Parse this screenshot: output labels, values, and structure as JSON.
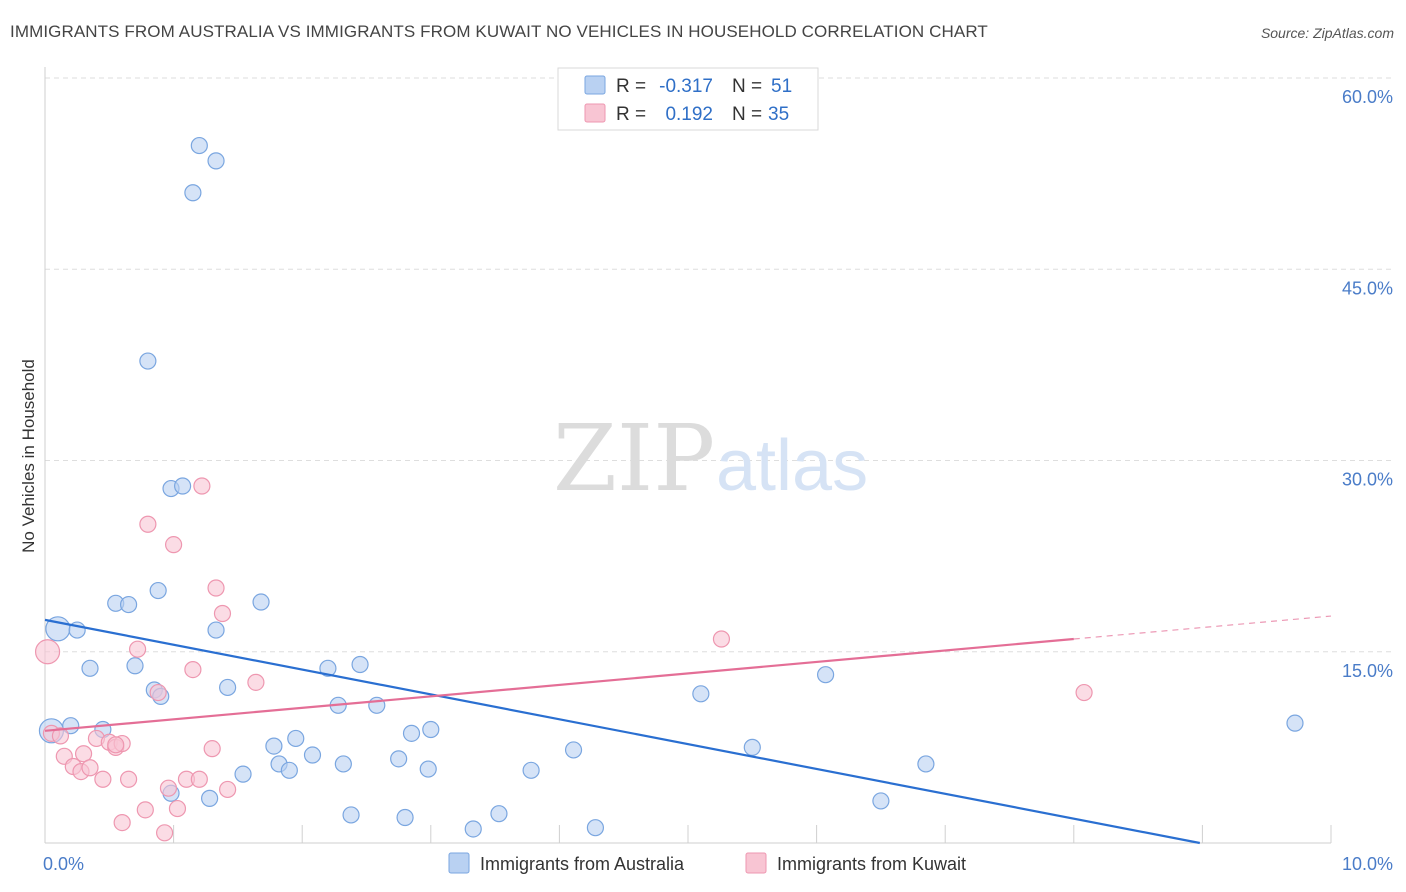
{
  "header": {
    "title": "IMMIGRANTS FROM AUSTRALIA VS IMMIGRANTS FROM KUWAIT NO VEHICLES IN HOUSEHOLD CORRELATION CHART",
    "source": "Source: ZipAtlas.com"
  },
  "watermark": {
    "zip": "ZIP",
    "atlas": "atlas"
  },
  "legend": {
    "r_label": "R =",
    "n_label": "N =",
    "rows": [
      {
        "r": "-0.317",
        "n": "51",
        "color": "#a9c6ee"
      },
      {
        "r": "0.192",
        "n": "35",
        "color": "#f5b7c8"
      }
    ]
  },
  "colors": {
    "australia_fill": "#b9d1f2",
    "australia_stroke": "#7aa6e0",
    "australia_line": "#2a6fd1",
    "kuwait_fill": "#f8c5d3",
    "kuwait_stroke": "#ee97b0",
    "kuwait_line": "#e46e96",
    "tick_text": "#4a7cc8"
  },
  "chart_data": {
    "type": "scatter",
    "title": "IMMIGRANTS FROM AUSTRALIA VS IMMIGRANTS FROM KUWAIT NO VEHICLES IN HOUSEHOLD CORRELATION CHART",
    "xlabel": "",
    "ylabel": "No Vehicles in Household",
    "xlim": [
      0,
      10
    ],
    "ylim": [
      0,
      60
    ],
    "x_tick_labels": [
      "0.0%",
      "10.0%"
    ],
    "y_tick_labels": [
      "15.0%",
      "30.0%",
      "45.0%",
      "60.0%"
    ],
    "y_ticks": [
      15,
      30,
      45,
      60
    ],
    "grid": true,
    "legend_position": "top-center",
    "series": [
      {
        "name": "Immigrants from Australia",
        "color": "#a9c6ee",
        "points": [
          [
            0.05,
            8.8
          ],
          [
            0.1,
            16.8
          ],
          [
            0.25,
            16.7
          ],
          [
            0.35,
            13.7
          ],
          [
            0.45,
            8.9
          ],
          [
            0.55,
            18.8
          ],
          [
            0.65,
            18.7
          ],
          [
            0.7,
            13.9
          ],
          [
            0.85,
            12.0
          ],
          [
            0.9,
            11.5
          ],
          [
            0.8,
            37.8
          ],
          [
            0.88,
            19.8
          ],
          [
            0.98,
            27.8
          ],
          [
            1.07,
            28.0
          ],
          [
            1.15,
            51.0
          ],
          [
            1.2,
            54.7
          ],
          [
            1.33,
            53.5
          ],
          [
            1.33,
            16.7
          ],
          [
            1.42,
            12.2
          ],
          [
            1.54,
            5.4
          ],
          [
            1.68,
            18.9
          ],
          [
            1.78,
            7.6
          ],
          [
            1.82,
            6.2
          ],
          [
            1.9,
            5.7
          ],
          [
            1.95,
            8.2
          ],
          [
            2.08,
            6.9
          ],
          [
            2.2,
            13.7
          ],
          [
            2.28,
            10.8
          ],
          [
            2.32,
            6.2
          ],
          [
            2.38,
            2.2
          ],
          [
            2.45,
            14.0
          ],
          [
            2.58,
            10.8
          ],
          [
            2.75,
            6.6
          ],
          [
            2.8,
            2.0
          ],
          [
            2.85,
            8.6
          ],
          [
            2.98,
            5.8
          ],
          [
            3.0,
            8.9
          ],
          [
            3.33,
            1.1
          ],
          [
            3.53,
            2.3
          ],
          [
            3.78,
            5.7
          ],
          [
            4.11,
            7.3
          ],
          [
            4.28,
            1.2
          ],
          [
            5.1,
            11.7
          ],
          [
            5.5,
            7.5
          ],
          [
            6.07,
            13.2
          ],
          [
            6.5,
            3.3
          ],
          [
            6.85,
            6.2
          ],
          [
            9.72,
            9.4
          ],
          [
            0.2,
            9.2
          ],
          [
            1.28,
            3.5
          ],
          [
            0.98,
            3.9
          ]
        ]
      },
      {
        "name": "Immigrants from Kuwait",
        "color": "#f5b7c8",
        "points": [
          [
            0.02,
            15.0
          ],
          [
            0.05,
            8.6
          ],
          [
            0.12,
            8.4
          ],
          [
            0.15,
            6.8
          ],
          [
            0.22,
            6.0
          ],
          [
            0.28,
            5.6
          ],
          [
            0.3,
            7.0
          ],
          [
            0.35,
            5.9
          ],
          [
            0.4,
            8.2
          ],
          [
            0.45,
            5.0
          ],
          [
            0.5,
            7.9
          ],
          [
            0.55,
            7.5
          ],
          [
            0.6,
            7.8
          ],
          [
            0.65,
            5.0
          ],
          [
            0.6,
            1.6
          ],
          [
            0.72,
            15.2
          ],
          [
            0.78,
            2.6
          ],
          [
            0.8,
            25.0
          ],
          [
            0.88,
            11.8
          ],
          [
            0.93,
            0.8
          ],
          [
            0.96,
            4.3
          ],
          [
            1.0,
            23.4
          ],
          [
            1.03,
            2.7
          ],
          [
            1.1,
            5.0
          ],
          [
            1.15,
            13.6
          ],
          [
            1.2,
            5.0
          ],
          [
            1.22,
            28.0
          ],
          [
            1.3,
            7.4
          ],
          [
            1.33,
            20.0
          ],
          [
            1.38,
            18.0
          ],
          [
            1.42,
            4.2
          ],
          [
            1.64,
            12.6
          ],
          [
            5.26,
            16.0
          ],
          [
            8.08,
            11.8
          ],
          [
            0.55,
            7.7
          ]
        ]
      }
    ],
    "trend_lines": [
      {
        "series": "Immigrants from Australia",
        "x": [
          0,
          8.98
        ],
        "y": [
          17.5,
          0
        ]
      },
      {
        "series": "Immigrants from Kuwait",
        "x": [
          0,
          8.0,
          10.0
        ],
        "y": [
          8.8,
          16.0,
          17.8
        ]
      }
    ]
  },
  "bottom_legend": [
    {
      "label": "Immigrants from Australia",
      "color": "#b9d1f2"
    },
    {
      "label": "Immigrants from Kuwait",
      "color": "#f8c5d3"
    }
  ]
}
